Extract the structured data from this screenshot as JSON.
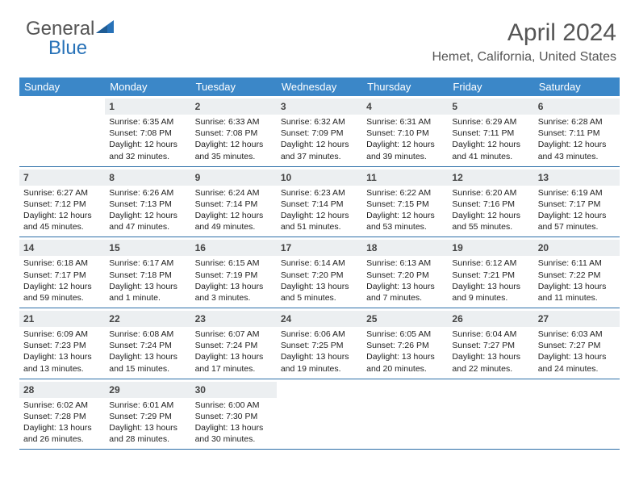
{
  "logo": {
    "part1": "General",
    "part2": "Blue"
  },
  "title": "April 2024",
  "location": "Hemet, California, United States",
  "colors": {
    "header_bg": "#3b87c8",
    "header_text": "#ffffff",
    "daynum_bg": "#eceff1",
    "week_border": "#2d6fa8",
    "text": "#222222",
    "title_color": "#555555"
  },
  "dow": [
    "Sunday",
    "Monday",
    "Tuesday",
    "Wednesday",
    "Thursday",
    "Friday",
    "Saturday"
  ],
  "weeks": [
    [
      null,
      {
        "n": "1",
        "sr": "6:35 AM",
        "ss": "7:08 PM",
        "d1": "12 hours",
        "d2": "and 32 minutes."
      },
      {
        "n": "2",
        "sr": "6:33 AM",
        "ss": "7:08 PM",
        "d1": "12 hours",
        "d2": "and 35 minutes."
      },
      {
        "n": "3",
        "sr": "6:32 AM",
        "ss": "7:09 PM",
        "d1": "12 hours",
        "d2": "and 37 minutes."
      },
      {
        "n": "4",
        "sr": "6:31 AM",
        "ss": "7:10 PM",
        "d1": "12 hours",
        "d2": "and 39 minutes."
      },
      {
        "n": "5",
        "sr": "6:29 AM",
        "ss": "7:11 PM",
        "d1": "12 hours",
        "d2": "and 41 minutes."
      },
      {
        "n": "6",
        "sr": "6:28 AM",
        "ss": "7:11 PM",
        "d1": "12 hours",
        "d2": "and 43 minutes."
      }
    ],
    [
      {
        "n": "7",
        "sr": "6:27 AM",
        "ss": "7:12 PM",
        "d1": "12 hours",
        "d2": "and 45 minutes."
      },
      {
        "n": "8",
        "sr": "6:26 AM",
        "ss": "7:13 PM",
        "d1": "12 hours",
        "d2": "and 47 minutes."
      },
      {
        "n": "9",
        "sr": "6:24 AM",
        "ss": "7:14 PM",
        "d1": "12 hours",
        "d2": "and 49 minutes."
      },
      {
        "n": "10",
        "sr": "6:23 AM",
        "ss": "7:14 PM",
        "d1": "12 hours",
        "d2": "and 51 minutes."
      },
      {
        "n": "11",
        "sr": "6:22 AM",
        "ss": "7:15 PM",
        "d1": "12 hours",
        "d2": "and 53 minutes."
      },
      {
        "n": "12",
        "sr": "6:20 AM",
        "ss": "7:16 PM",
        "d1": "12 hours",
        "d2": "and 55 minutes."
      },
      {
        "n": "13",
        "sr": "6:19 AM",
        "ss": "7:17 PM",
        "d1": "12 hours",
        "d2": "and 57 minutes."
      }
    ],
    [
      {
        "n": "14",
        "sr": "6:18 AM",
        "ss": "7:17 PM",
        "d1": "12 hours",
        "d2": "and 59 minutes."
      },
      {
        "n": "15",
        "sr": "6:17 AM",
        "ss": "7:18 PM",
        "d1": "13 hours",
        "d2": "and 1 minute."
      },
      {
        "n": "16",
        "sr": "6:15 AM",
        "ss": "7:19 PM",
        "d1": "13 hours",
        "d2": "and 3 minutes."
      },
      {
        "n": "17",
        "sr": "6:14 AM",
        "ss": "7:20 PM",
        "d1": "13 hours",
        "d2": "and 5 minutes."
      },
      {
        "n": "18",
        "sr": "6:13 AM",
        "ss": "7:20 PM",
        "d1": "13 hours",
        "d2": "and 7 minutes."
      },
      {
        "n": "19",
        "sr": "6:12 AM",
        "ss": "7:21 PM",
        "d1": "13 hours",
        "d2": "and 9 minutes."
      },
      {
        "n": "20",
        "sr": "6:11 AM",
        "ss": "7:22 PM",
        "d1": "13 hours",
        "d2": "and 11 minutes."
      }
    ],
    [
      {
        "n": "21",
        "sr": "6:09 AM",
        "ss": "7:23 PM",
        "d1": "13 hours",
        "d2": "and 13 minutes."
      },
      {
        "n": "22",
        "sr": "6:08 AM",
        "ss": "7:24 PM",
        "d1": "13 hours",
        "d2": "and 15 minutes."
      },
      {
        "n": "23",
        "sr": "6:07 AM",
        "ss": "7:24 PM",
        "d1": "13 hours",
        "d2": "and 17 minutes."
      },
      {
        "n": "24",
        "sr": "6:06 AM",
        "ss": "7:25 PM",
        "d1": "13 hours",
        "d2": "and 19 minutes."
      },
      {
        "n": "25",
        "sr": "6:05 AM",
        "ss": "7:26 PM",
        "d1": "13 hours",
        "d2": "and 20 minutes."
      },
      {
        "n": "26",
        "sr": "6:04 AM",
        "ss": "7:27 PM",
        "d1": "13 hours",
        "d2": "and 22 minutes."
      },
      {
        "n": "27",
        "sr": "6:03 AM",
        "ss": "7:27 PM",
        "d1": "13 hours",
        "d2": "and 24 minutes."
      }
    ],
    [
      {
        "n": "28",
        "sr": "6:02 AM",
        "ss": "7:28 PM",
        "d1": "13 hours",
        "d2": "and 26 minutes."
      },
      {
        "n": "29",
        "sr": "6:01 AM",
        "ss": "7:29 PM",
        "d1": "13 hours",
        "d2": "and 28 minutes."
      },
      {
        "n": "30",
        "sr": "6:00 AM",
        "ss": "7:30 PM",
        "d1": "13 hours",
        "d2": "and 30 minutes."
      },
      null,
      null,
      null,
      null
    ]
  ],
  "labels": {
    "sunrise": "Sunrise:",
    "sunset": "Sunset:",
    "daylight": "Daylight:"
  }
}
